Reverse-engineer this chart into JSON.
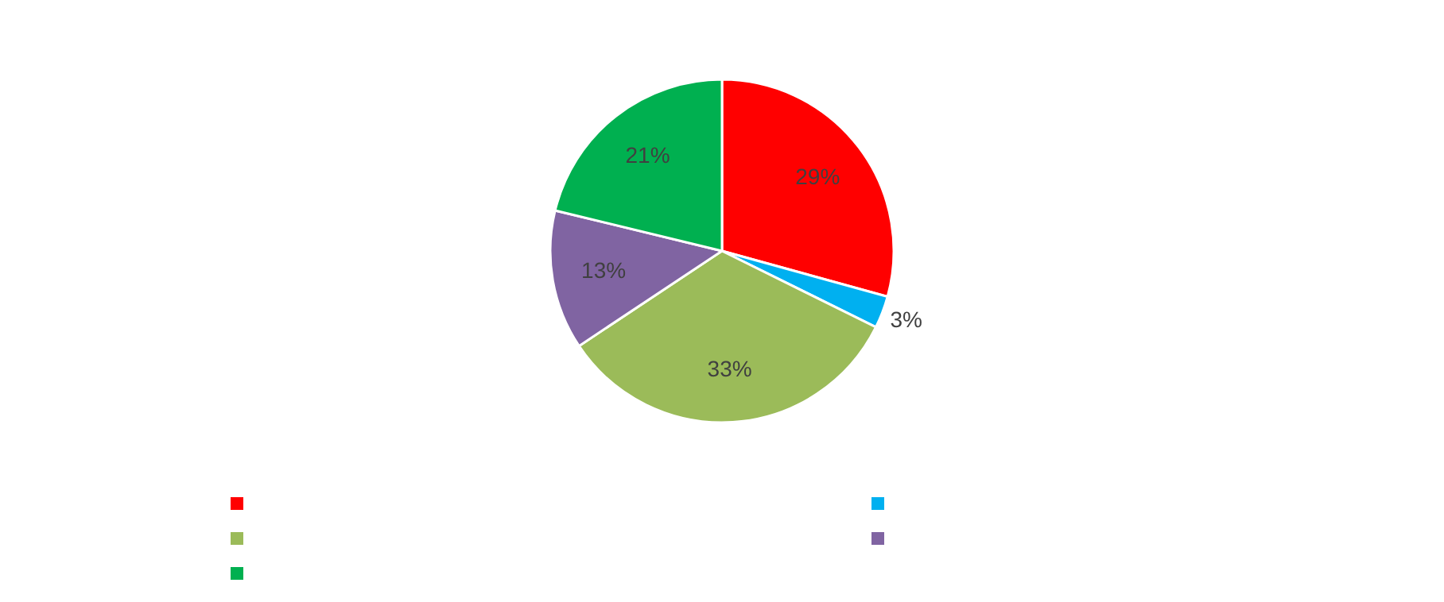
{
  "chart_data": {
    "type": "pie",
    "categories": [
      null,
      null,
      null,
      null,
      null
    ],
    "values": [
      29,
      3,
      33,
      13,
      21
    ],
    "value_labels": [
      "29%",
      "3%",
      "33%",
      "13%",
      "21%"
    ],
    "colors": [
      "#ff0000",
      "#00b0f0",
      "#9bbb59",
      "#8064a2",
      "#00b050"
    ]
  }
}
